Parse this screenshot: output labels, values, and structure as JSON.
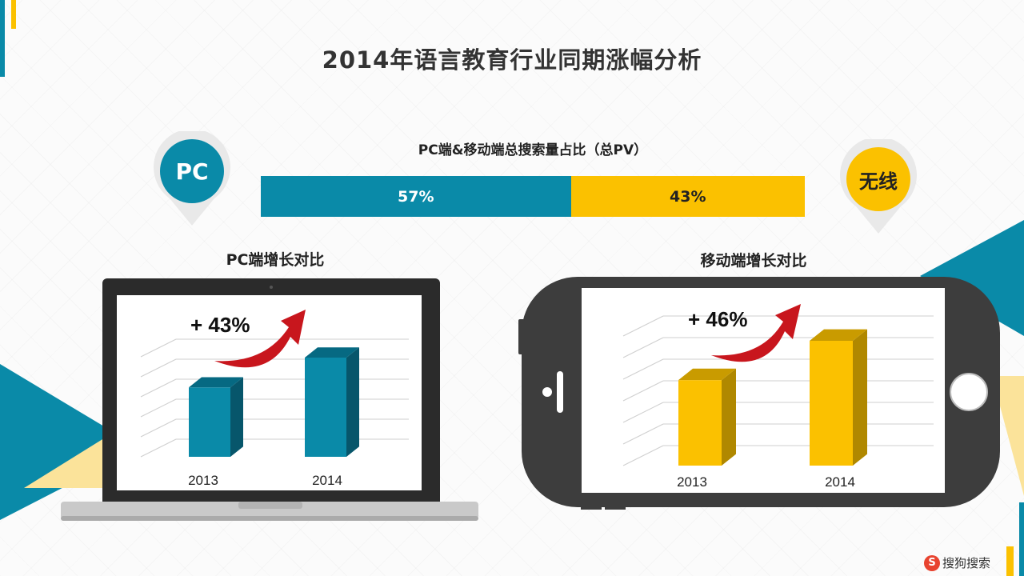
{
  "page": {
    "title": "2014年语言教育行业同期涨幅分析",
    "brand": {
      "icon": "sogou-logo-icon",
      "icon_glyph": "S",
      "text": "搜狗搜索"
    }
  },
  "colors": {
    "pc": "#0a8aa8",
    "pc_dark": "#07566b",
    "mobile": "#fbc100",
    "mobile_dark": "#b08800",
    "arrow": "#c8161d"
  },
  "badges": {
    "pc": "PC",
    "mobile": "无线"
  },
  "chart_data": [
    {
      "type": "bar",
      "orientation": "horizontal-stacked",
      "title": "PC端&移动端总搜索量占比（总PV）",
      "categories": [
        "PC",
        "无线"
      ],
      "values": [
        57,
        43
      ],
      "labels": [
        "57%",
        "43%"
      ],
      "unit": "%"
    },
    {
      "type": "bar",
      "title": "PC端增长对比",
      "categories": [
        "2013",
        "2014"
      ],
      "values": [
        1.0,
        1.43
      ],
      "annotation": "+ 43%",
      "grid": true,
      "device": "laptop"
    },
    {
      "type": "bar",
      "title": "移动端增长对比",
      "categories": [
        "2013",
        "2014"
      ],
      "values": [
        1.0,
        1.46
      ],
      "annotation": "+ 46%",
      "grid": true,
      "device": "phone"
    }
  ]
}
